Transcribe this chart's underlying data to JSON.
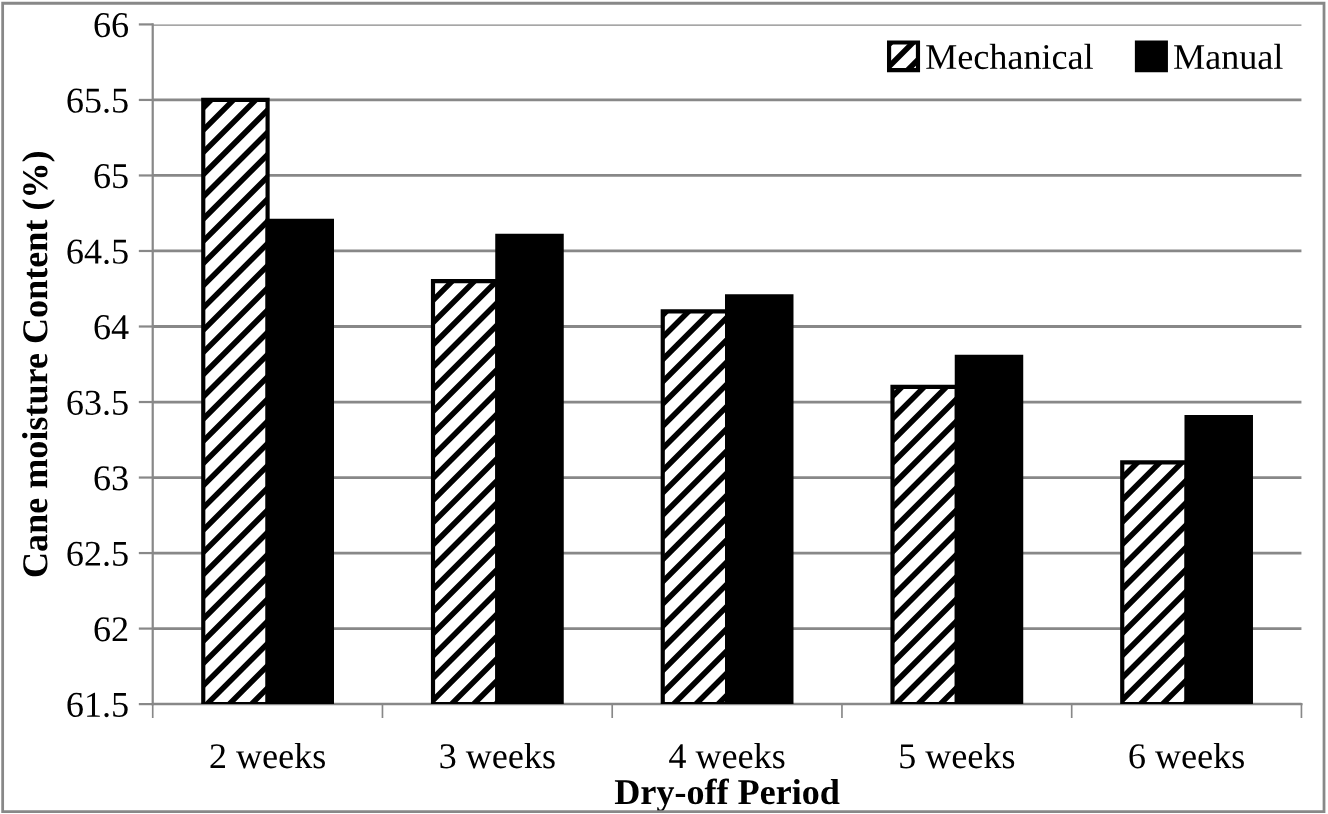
{
  "chart_data": {
    "type": "bar",
    "xlabel": "Dry-off Period",
    "ylabel": "Cane moisture Content (%)",
    "categories": [
      "2 weeks",
      "3 weeks",
      "4 weeks",
      "5 weeks",
      "6 weeks"
    ],
    "series": [
      {
        "name": "Mechanical",
        "color": "#000000",
        "values": [
          65.5,
          64.3,
          64.1,
          63.6,
          63.1
        ]
      },
      {
        "name": "Manual",
        "color": "#000000",
        "values": [
          64.7,
          64.6,
          64.2,
          63.8,
          63.4
        ]
      }
    ],
    "ylim": [
      61.5,
      66
    ],
    "yticks": [
      61.5,
      62,
      62.5,
      63,
      63.5,
      64,
      64.5,
      65,
      65.5,
      66
    ],
    "grid": "y",
    "legend": "top right"
  }
}
